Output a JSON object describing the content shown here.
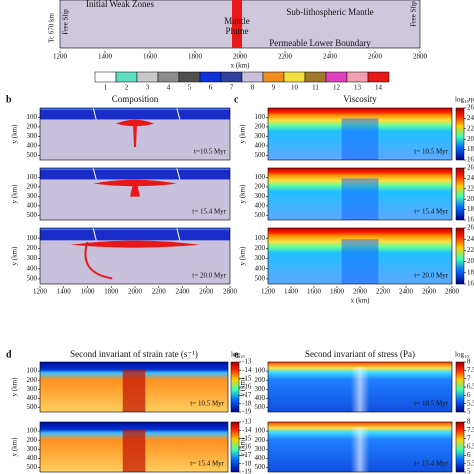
{
  "panel_a": {
    "weak_zones": "Initial Weak Zones",
    "mantle": "Sub-lithospheric Mantle",
    "plume": [
      "Mantle",
      "Plume"
    ],
    "free_slip_left": "Free Slip",
    "free_slip_right": "Free Slip",
    "depth": "Tc 670 km",
    "lower": "Permeable Lower Boundary",
    "x_ticks": [
      1200,
      1400,
      1600,
      1800,
      2000,
      2200,
      2400,
      2600,
      2800
    ],
    "x_label": "x (km)"
  },
  "legend": {
    "labels": [
      "1",
      "2",
      "3",
      "4",
      "5",
      "6",
      "7",
      "8",
      "9",
      "10",
      "11",
      "12",
      "13",
      "14"
    ],
    "colors": [
      "#ffffff",
      "#5ee0c0",
      "#c8c8c8",
      "#8c8c8c",
      "#505050",
      "#1030d8",
      "#3040a0",
      "#c8c0dc",
      "#f08c1c",
      "#f0e040",
      "#a0782c",
      "#e040c0",
      "#f0a0b0",
      "#e81818"
    ]
  },
  "panel_b": {
    "letter": "b",
    "title": "Composition",
    "y_label": "y (km)",
    "y_ticks": [
      100,
      200,
      300,
      400,
      500
    ],
    "times": [
      "t=10.5 Myr",
      "t= 15.4 Myr",
      "t= 20.0 Myr"
    ],
    "x_ticks": [
      1200,
      1400,
      1600,
      1800,
      2000,
      2200,
      2400,
      2600,
      2800
    ]
  },
  "panel_c": {
    "letter": "c",
    "title": "Viscosity",
    "cbar_label": "log₁₀ηeff (Pa·s)",
    "cbar_ticks": [
      26,
      24,
      22,
      20,
      18,
      16
    ],
    "y_label": "y (km)",
    "y_ticks": [
      100,
      200,
      300,
      400,
      500
    ],
    "times": [
      "t= 10.5 Myr",
      "t= 15.4 Myr",
      "t= 20.0 Myr"
    ],
    "x_ticks": [
      1200,
      1400,
      1600,
      1800,
      2000,
      2200,
      2400,
      2600,
      2800
    ],
    "x_label": "x (km)"
  },
  "panel_d": {
    "letter": "d",
    "title": "Second invariant of strain rate (s⁻¹)",
    "cbar_label": "log₁₀",
    "cbar_ticks": [
      -13,
      -14,
      -15,
      -16,
      -17,
      -18,
      -19
    ],
    "y_label": "y (km)",
    "y_ticks": [
      100,
      200,
      300,
      400,
      500
    ],
    "times": [
      "t= 10.5 Myr",
      "t= 15.4 Myr"
    ]
  },
  "panel_e": {
    "letter": "e",
    "title": "Second invariant of stress (Pa)",
    "cbar_label": "log₁₀",
    "cbar_ticks": [
      8,
      7.5,
      7,
      6.5,
      6,
      5.5,
      5
    ],
    "y_label": "y (km)",
    "y_ticks": [
      100,
      200,
      300,
      400,
      500
    ],
    "times": [
      "t= 10.5 Myr",
      "t= 15.4 Myr"
    ]
  }
}
